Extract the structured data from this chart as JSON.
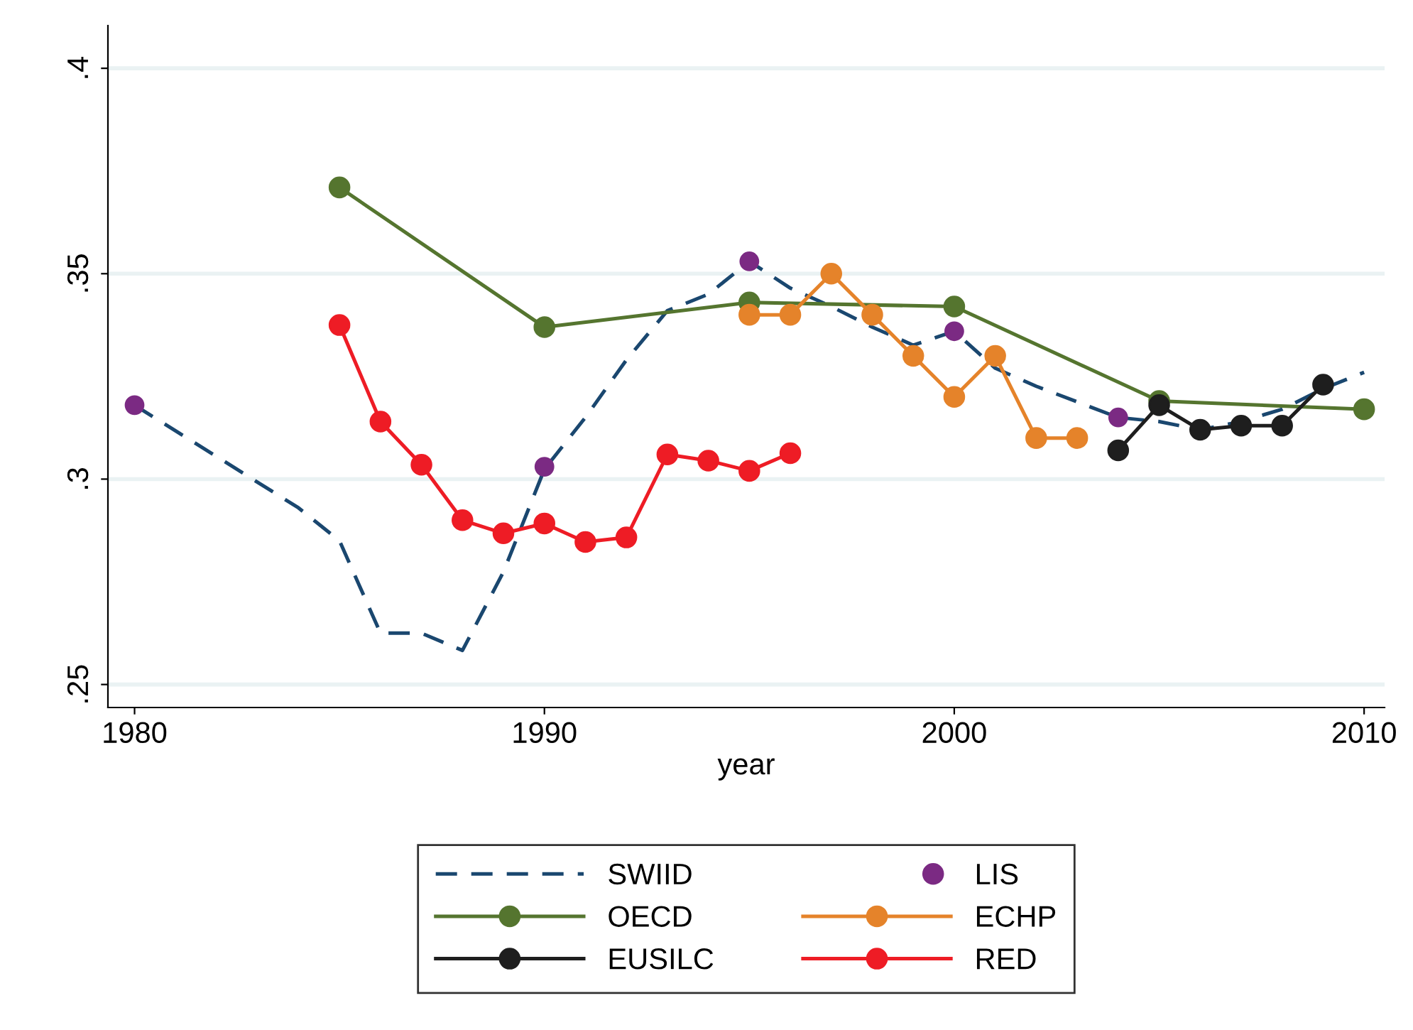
{
  "chart_data": {
    "type": "line",
    "xlabel": "year",
    "xlim": [
      1979.35,
      2010.5
    ],
    "ylim": [
      0.2444,
      0.4104
    ],
    "xticks": [
      1980,
      1990,
      2000,
      2010
    ],
    "yticks": [
      {
        "value": 0.25,
        "label": ".25"
      },
      {
        "value": 0.3,
        "label": ".3"
      },
      {
        "value": 0.35,
        "label": ".35"
      },
      {
        "value": 0.4,
        "label": ".4"
      }
    ],
    "grid": "y",
    "legend": "bottom",
    "series": [
      {
        "name": "SWIID",
        "color": "#1a476f",
        "line_style": "dashed",
        "marker": "none",
        "x": [
          1980,
          1984,
          1985,
          1986,
          1987,
          1988,
          1989,
          1990,
          1991,
          1992,
          1993,
          1994,
          1995,
          1996,
          1997,
          1998,
          1999,
          2000,
          2001,
          2002,
          2003,
          2004,
          2005,
          2006,
          2007,
          2008,
          2009,
          2010
        ],
        "values": [
          0.318,
          0.293,
          0.285,
          0.2625,
          0.2625,
          0.2583,
          0.2774,
          0.3024,
          0.315,
          0.329,
          0.341,
          0.345,
          0.353,
          0.3465,
          0.342,
          0.337,
          0.3326,
          0.336,
          0.327,
          0.3226,
          0.3188,
          0.315,
          0.314,
          0.312,
          0.314,
          0.317,
          0.322,
          0.326
        ]
      },
      {
        "name": "LIS",
        "type": "scatter",
        "color": "#7b2a83",
        "marker": "circle",
        "x": [
          1980,
          1990,
          1995,
          2000,
          2004
        ],
        "values": [
          0.318,
          0.303,
          0.353,
          0.336,
          0.315
        ]
      },
      {
        "name": "OECD",
        "color": "#55752f",
        "line_style": "solid",
        "marker": "circle",
        "x": [
          1985,
          1990,
          1995,
          2000,
          2005,
          2010
        ],
        "values": [
          0.371,
          0.337,
          0.343,
          0.342,
          0.319,
          0.317
        ]
      },
      {
        "name": "ECHP",
        "color": "#e5832a",
        "line_style": "solid",
        "marker": "circle",
        "x": [
          1995,
          1996,
          1997,
          1998,
          1999,
          2000,
          2001,
          2002,
          2003
        ],
        "values": [
          0.34,
          0.34,
          0.35,
          0.34,
          0.33,
          0.32,
          0.33,
          0.31,
          0.31
        ]
      },
      {
        "name": "EUSILC",
        "color": "#1e1e1e",
        "line_style": "solid",
        "marker": "circle",
        "x": [
          2004,
          2005,
          2006,
          2007,
          2008,
          2009
        ],
        "values": [
          0.307,
          0.318,
          0.312,
          0.313,
          0.313,
          0.323
        ]
      },
      {
        "name": "RED",
        "color": "#ee1c25",
        "line_style": "solid",
        "marker": "circle",
        "x": [
          1985,
          1986,
          1987,
          1988,
          1989,
          1990,
          1991,
          1992,
          1993,
          1994,
          1995,
          1996
        ],
        "values": [
          0.3375,
          0.314,
          0.3035,
          0.29,
          0.2868,
          0.2892,
          0.2847,
          0.2858,
          0.306,
          0.3045,
          0.302,
          0.3063
        ]
      }
    ]
  }
}
